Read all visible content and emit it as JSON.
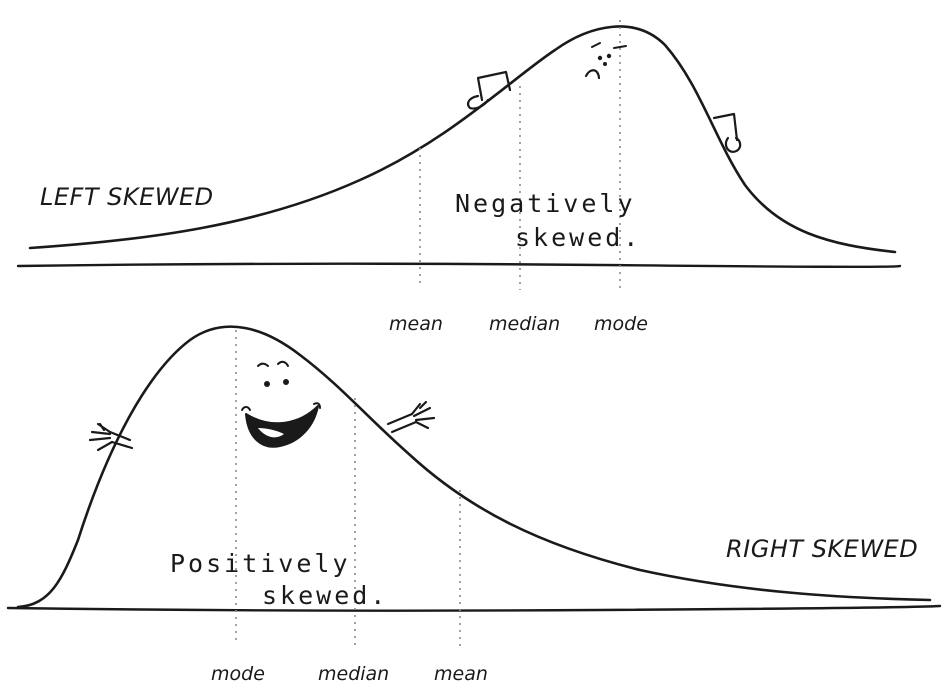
{
  "left_panel": {
    "title": "LEFT SKEWED",
    "caption_line1": "Negatively",
    "caption_line2": "skewed.",
    "labels": {
      "mean": "mean",
      "median": "median",
      "mode": "mode"
    }
  },
  "right_panel": {
    "title": "RIGHT SKEWED",
    "caption_line1": "Positively",
    "caption_line2": "skewed.",
    "labels": {
      "mode": "mode",
      "median": "median",
      "mean": "mean"
    }
  },
  "icons": {
    "left_face": "frown-face-icon",
    "right_face": "smile-face-icon"
  }
}
